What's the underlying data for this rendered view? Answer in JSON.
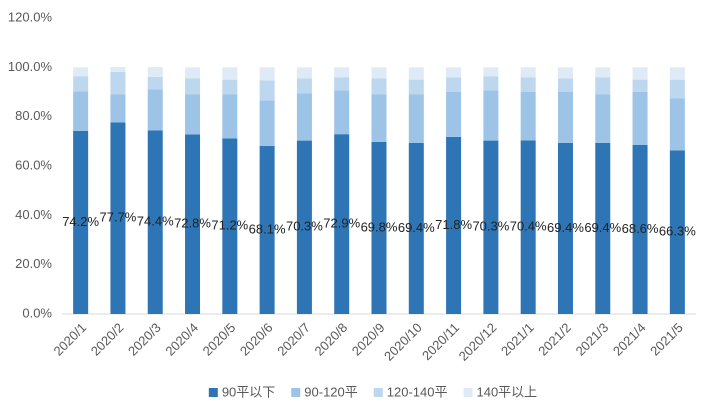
{
  "chart_data": {
    "type": "stacked_bar",
    "categories": [
      "2020/1",
      "2020/2",
      "2020/3",
      "2020/4",
      "2020/5",
      "2020/6",
      "2020/7",
      "2020/8",
      "2020/9",
      "2020/10",
      "2020/11",
      "2020/12",
      "2021/1",
      "2021/2",
      "2021/3",
      "2021/4",
      "2021/5"
    ],
    "series": [
      {
        "name": "90平以下",
        "color": "#2e75b6",
        "values": [
          74.2,
          77.7,
          74.4,
          72.8,
          71.2,
          68.1,
          70.3,
          72.9,
          69.8,
          69.4,
          71.8,
          70.3,
          70.4,
          69.4,
          69.4,
          68.6,
          66.3
        ],
        "value_labels": [
          "74.2%",
          "77.7%",
          "74.4%",
          "72.8%",
          "71.2%",
          "68.1%",
          "70.3%",
          "72.9%",
          "69.8%",
          "69.4%",
          "71.8%",
          "70.3%",
          "70.4%",
          "69.4%",
          "69.4%",
          "68.6%",
          "66.3%"
        ]
      },
      {
        "name": "90-120平",
        "color": "#9dc3e6",
        "values": [
          16.1,
          11.4,
          16.7,
          16.2,
          17.8,
          18.5,
          19.2,
          17.8,
          19.2,
          19.6,
          18.2,
          20.4,
          19.6,
          20.6,
          19.6,
          21.4,
          21.2
        ]
      },
      {
        "name": "120-140平",
        "color": "#bdd7ee",
        "values": [
          6.1,
          9,
          5,
          6.5,
          6,
          8.1,
          6,
          5.3,
          6.5,
          6,
          6,
          5.7,
          6,
          5.5,
          7,
          5,
          7.5
        ]
      },
      {
        "name": "140平以上",
        "color": "#deebf7",
        "values": [
          3.6,
          2,
          4,
          4.5,
          5,
          5.3,
          4.5,
          4,
          4.5,
          5,
          4,
          3.6,
          4,
          4.5,
          4,
          5,
          5
        ]
      }
    ],
    "ylim": [
      0,
      120
    ],
    "yticks": [
      {
        "value": 0,
        "label": "0.0%"
      },
      {
        "value": 20,
        "label": "20.0%"
      },
      {
        "value": 40,
        "label": "40.0%"
      },
      {
        "value": 60,
        "label": "60.0%"
      },
      {
        "value": 80,
        "label": "80.0%"
      },
      {
        "value": 100,
        "label": "100.0%"
      },
      {
        "value": 120,
        "label": "120.0%"
      }
    ],
    "legend": "bottom"
  }
}
